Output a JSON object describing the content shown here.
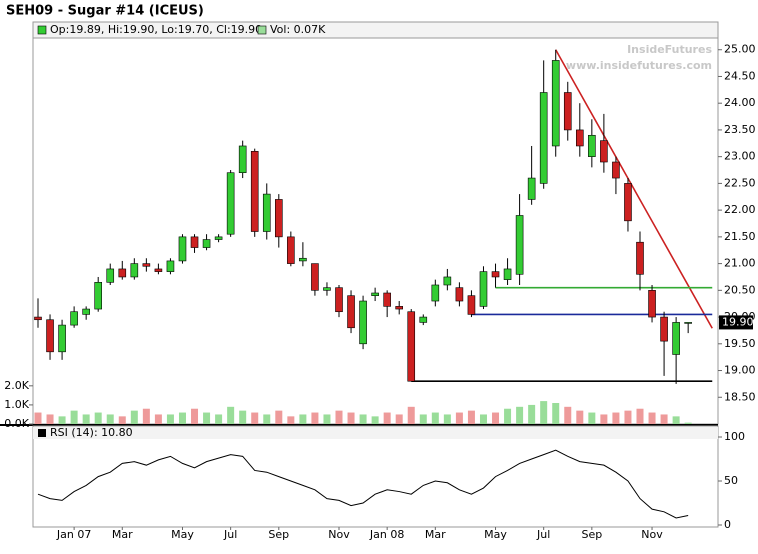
{
  "chart_data": [
    {
      "type": "candlestick",
      "title": "SEH09 - Sugar #14 (ICEUS)",
      "legend": "Op:19.89, Hi:19.90, Lo:19.70, Cl:19.90",
      "watermark": "InsideFutures",
      "watermark_url": "www.insidefutures.com",
      "categories": [
        null,
        null,
        null,
        "Jan 07",
        null,
        null,
        null,
        "Mar",
        null,
        null,
        null,
        null,
        "May",
        null,
        null,
        null,
        "Jul",
        null,
        null,
        null,
        "Sep",
        null,
        null,
        null,
        null,
        "Nov",
        null,
        null,
        null,
        "Jan 08",
        null,
        null,
        null,
        "Mar",
        null,
        null,
        null,
        null,
        "May",
        null,
        null,
        null,
        "Jul",
        null,
        null,
        null,
        "Sep",
        null,
        null,
        null,
        null,
        "Nov",
        null,
        null,
        null
      ],
      "open": [
        20.0,
        19.95,
        19.35,
        19.85,
        20.05,
        20.15,
        20.65,
        20.9,
        20.75,
        21.0,
        20.9,
        20.85,
        21.05,
        21.5,
        21.3,
        21.45,
        21.55,
        22.7,
        23.1,
        21.6,
        22.2,
        21.5,
        21.05,
        21.0,
        20.5,
        20.55,
        20.4,
        19.5,
        20.4,
        20.45,
        20.2,
        20.1,
        19.9,
        20.3,
        20.6,
        20.55,
        20.4,
        20.2,
        20.85,
        20.7,
        20.8,
        22.2,
        22.5,
        23.2,
        24.2,
        23.5,
        23.0,
        23.3,
        22.9,
        22.5,
        21.4,
        20.5,
        20.0,
        19.3,
        19.89
      ],
      "high": [
        20.35,
        20.05,
        19.95,
        20.2,
        20.2,
        20.75,
        21.0,
        21.05,
        21.1,
        21.1,
        21.0,
        21.1,
        21.55,
        21.55,
        21.55,
        21.55,
        22.75,
        23.3,
        23.15,
        22.5,
        22.3,
        21.6,
        21.4,
        21.0,
        20.65,
        20.6,
        20.5,
        20.4,
        20.55,
        20.5,
        20.3,
        20.15,
        20.05,
        20.7,
        20.9,
        20.65,
        20.5,
        20.95,
        21.0,
        21.1,
        22.3,
        23.2,
        24.8,
        25.0,
        24.4,
        24.0,
        23.7,
        23.8,
        23.0,
        22.6,
        21.6,
        20.6,
        20.1,
        20.0,
        19.9
      ],
      "low": [
        19.8,
        19.2,
        19.2,
        19.8,
        19.95,
        20.1,
        20.6,
        20.7,
        20.7,
        20.85,
        20.8,
        20.8,
        21.0,
        21.2,
        21.25,
        21.4,
        21.5,
        22.6,
        21.5,
        21.45,
        21.3,
        20.95,
        20.95,
        20.4,
        20.4,
        20.0,
        19.7,
        19.4,
        20.3,
        20.0,
        20.05,
        18.8,
        19.85,
        20.2,
        20.5,
        20.2,
        20.0,
        20.15,
        20.55,
        20.6,
        20.6,
        22.1,
        22.4,
        23.0,
        23.3,
        23.0,
        22.8,
        22.7,
        22.3,
        21.6,
        20.5,
        19.9,
        18.9,
        18.75,
        19.7
      ],
      "close": [
        19.95,
        19.35,
        19.85,
        20.1,
        20.15,
        20.65,
        20.9,
        20.75,
        21.0,
        20.95,
        20.85,
        21.05,
        21.5,
        21.3,
        21.45,
        21.5,
        22.7,
        23.2,
        21.6,
        22.3,
        21.5,
        21.0,
        21.1,
        20.5,
        20.55,
        20.1,
        19.8,
        20.3,
        20.45,
        20.2,
        20.15,
        18.8,
        20.0,
        20.6,
        20.75,
        20.3,
        20.05,
        20.85,
        20.75,
        20.9,
        21.9,
        22.6,
        24.2,
        24.8,
        23.5,
        23.2,
        23.4,
        22.9,
        22.6,
        21.8,
        20.8,
        20.0,
        19.55,
        19.9,
        19.9
      ],
      "up_color": "#33cc33",
      "down_color": "#cc2020",
      "ylim": [
        18.0,
        25.5
      ],
      "yticks": [
        {
          "value": 18.5,
          "label": "18.50"
        },
        {
          "value": 19.0,
          "label": "19.00"
        },
        {
          "value": 19.5,
          "label": "19.50"
        },
        {
          "value": 20.0,
          "label": "20.00"
        },
        {
          "value": 20.5,
          "label": "20.50"
        },
        {
          "value": 21.0,
          "label": "21.00"
        },
        {
          "value": 21.5,
          "label": "21.50"
        },
        {
          "value": 22.0,
          "label": "22.00"
        },
        {
          "value": 22.5,
          "label": "22.50"
        },
        {
          "value": 23.0,
          "label": "23.00"
        },
        {
          "value": 23.5,
          "label": "23.50"
        },
        {
          "value": 24.0,
          "label": "24.00"
        },
        {
          "value": 24.5,
          "label": "24.50"
        },
        {
          "value": 25.0,
          "label": "25.00"
        }
      ],
      "last_price": {
        "value": 19.9,
        "label": "19.90"
      },
      "lines": [
        {
          "color": "#cc2222",
          "from": [
            43,
            25.0
          ],
          "to": [
            56,
            19.79
          ]
        },
        {
          "color": "#33aa33",
          "from": [
            38,
            20.55
          ],
          "to": [
            56,
            20.55
          ]
        },
        {
          "color": "#1a2a9a",
          "from": [
            36,
            20.05
          ],
          "to": [
            56,
            20.05
          ]
        },
        {
          "color": "#000000",
          "from": [
            31,
            18.8
          ],
          "to": [
            56,
            18.8
          ]
        }
      ]
    },
    {
      "type": "bar",
      "legend": "Vol: 0.07K",
      "values": [
        0.6,
        0.5,
        0.4,
        0.7,
        0.5,
        0.6,
        0.5,
        0.4,
        0.7,
        0.8,
        0.5,
        0.5,
        0.6,
        0.8,
        0.6,
        0.5,
        0.9,
        0.7,
        0.6,
        0.5,
        0.7,
        0.4,
        0.5,
        0.6,
        0.5,
        0.7,
        0.6,
        0.5,
        0.4,
        0.6,
        0.5,
        0.9,
        0.5,
        0.6,
        0.5,
        0.6,
        0.7,
        0.5,
        0.6,
        0.8,
        0.9,
        1.0,
        1.2,
        1.1,
        0.9,
        0.7,
        0.6,
        0.5,
        0.6,
        0.7,
        0.8,
        0.6,
        0.5,
        0.4,
        0.07
      ],
      "up_color": "#99dd99",
      "down_color": "#ee9a9a",
      "ylim": [
        0,
        2.2
      ],
      "yticks": [
        {
          "value": 0,
          "label": "0.0K"
        },
        {
          "value": 1,
          "label": "1.0K"
        },
        {
          "value": 2,
          "label": "2.0K"
        }
      ]
    },
    {
      "type": "line",
      "legend": "RSI (14): 10.80",
      "color": "#000000",
      "values": [
        35,
        30,
        28,
        38,
        45,
        55,
        60,
        70,
        72,
        68,
        74,
        78,
        70,
        65,
        72,
        76,
        80,
        78,
        62,
        60,
        55,
        50,
        45,
        40,
        30,
        28,
        22,
        25,
        35,
        40,
        38,
        35,
        45,
        50,
        48,
        40,
        35,
        42,
        55,
        62,
        70,
        75,
        80,
        85,
        78,
        72,
        70,
        68,
        60,
        50,
        30,
        18,
        15,
        8,
        10.8
      ],
      "ylim": [
        0,
        100
      ],
      "yticks": [
        0,
        50,
        100
      ]
    }
  ]
}
